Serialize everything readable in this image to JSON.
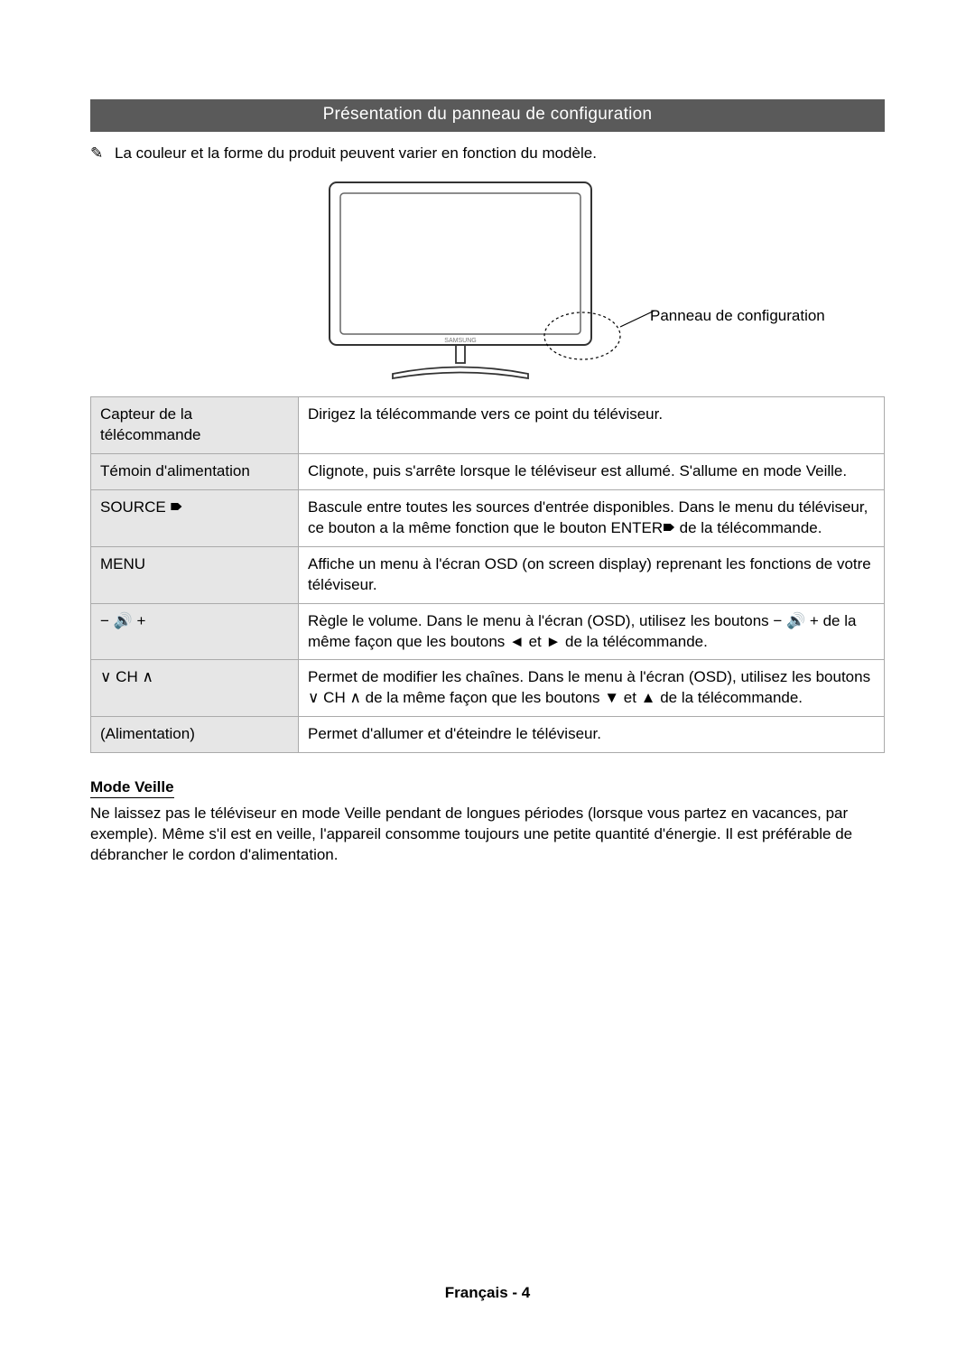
{
  "banner": {
    "title": "Présentation du panneau de configuration"
  },
  "note": {
    "icon": "✎",
    "text": "La couleur et la forme du produit peuvent varier en fonction du modèle."
  },
  "figure": {
    "callout_label": "Panneau de configuration",
    "brand": "SAMSUNG"
  },
  "table": {
    "rows": [
      {
        "label": "Capteur de la télécommande",
        "desc": "Dirigez la télécommande vers ce point du téléviseur."
      },
      {
        "label": "Témoin d'alimentation",
        "desc": "Clignote, puis s'arrête lorsque le téléviseur est allumé. S'allume en mode Veille."
      },
      {
        "label": "SOURCE 🠶",
        "desc": "Bascule entre toutes les sources d'entrée disponibles. Dans le menu du téléviseur, ce bouton a la même fonction que le bouton ENTER🠶 de la télécommande."
      },
      {
        "label": "MENU",
        "desc": "Affiche un menu à l'écran OSD (on screen display) reprenant les fonctions de votre téléviseur."
      },
      {
        "label": "− 🔊 +",
        "desc": "Règle le volume. Dans le menu à l'écran (OSD), utilisez les boutons − 🔊 + de la même façon que les boutons ◄ et ► de la télécommande."
      },
      {
        "label": "∨ CH ∧",
        "desc": "Permet de modifier les chaînes. Dans le menu à l'écran (OSD), utilisez les boutons ∨ CH ∧ de la même façon que les boutons ▼ et ▲ de la télécommande."
      },
      {
        "label": "(Alimentation)",
        "desc": "Permet d'allumer et d'éteindre le téléviseur."
      }
    ]
  },
  "standby": {
    "heading": "Mode Veille",
    "body": "Ne laissez pas le téléviseur en mode Veille pendant de longues périodes (lorsque vous partez en vacances, par exemple). Même s'il est en veille, l'appareil consomme toujours une petite quantité d'énergie. Il est préférable de débrancher le cordon d'alimentation."
  },
  "footer": {
    "text": "Français - 4"
  }
}
